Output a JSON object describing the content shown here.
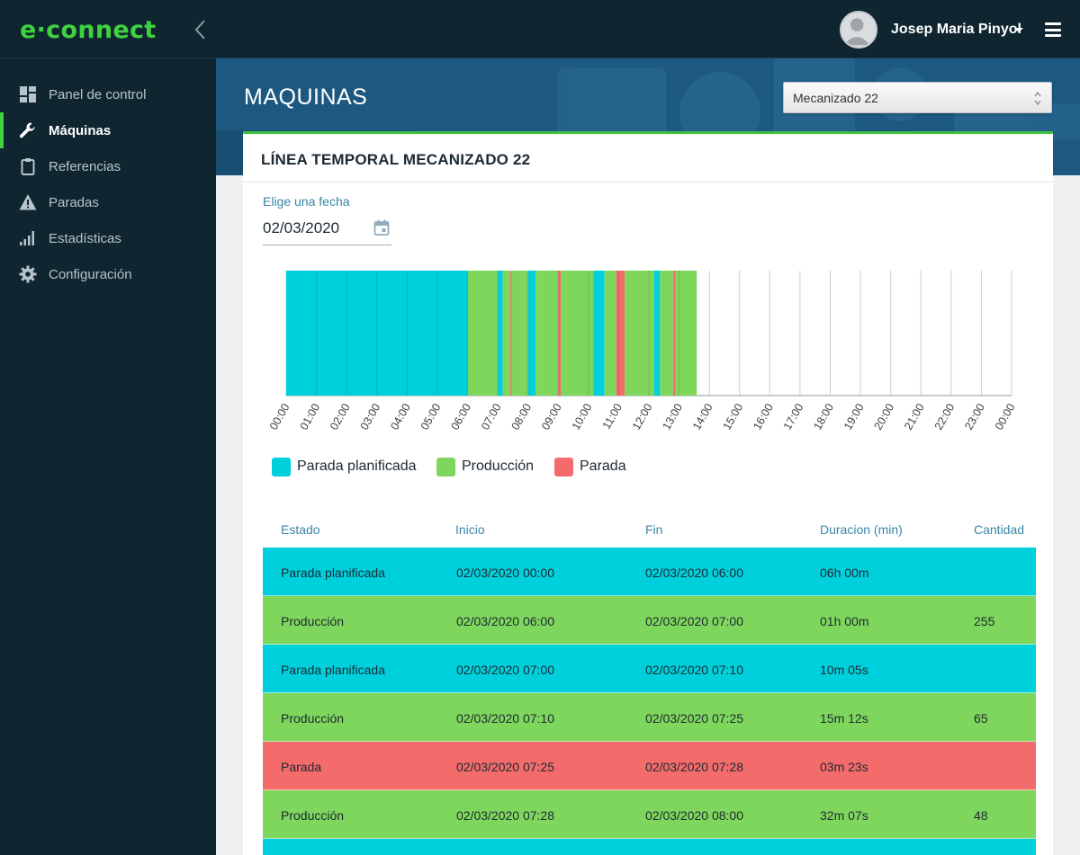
{
  "app": {
    "brand": "e·connect"
  },
  "header": {
    "user_name": "Josep Maria  Pinyol",
    "icons": [
      "chevron-left-icon",
      "user-avatar",
      "caret-down-icon",
      "hamburger-menu-icon"
    ]
  },
  "sidebar": {
    "items": [
      {
        "label": "Panel de control",
        "icon": "dashboard-icon",
        "active": false
      },
      {
        "label": "Máquinas",
        "icon": "wrench-icon",
        "active": true
      },
      {
        "label": "Referencias",
        "icon": "clipboard-icon",
        "active": false
      },
      {
        "label": "Paradas",
        "icon": "warning-icon",
        "active": false
      },
      {
        "label": "Estadísticas",
        "icon": "signal-bars-icon",
        "active": false
      },
      {
        "label": "Configuración",
        "icon": "gear-icon",
        "active": false
      }
    ]
  },
  "page": {
    "title": "MAQUINAS",
    "machine_select": {
      "value": "Mecanizado 22"
    }
  },
  "card": {
    "title": "LÍNEA TEMPORAL MECANIZADO 22",
    "date_label": "Elige una fecha",
    "date_value": "02/03/2020"
  },
  "colors": {
    "parada_planificada": "#00d0dc",
    "produccion": "#7fd65c",
    "parada": "#f36b6b",
    "accent": "#3fd13f",
    "sidebar_bg": "#0f2530"
  },
  "chart_data": {
    "type": "timeline",
    "x_unit": "hour of day",
    "xlim": [
      "00:00",
      "24:00"
    ],
    "ticks": [
      "00:00",
      "01:00",
      "02:00",
      "03:00",
      "04:00",
      "05:00",
      "06:00",
      "07:00",
      "08:00",
      "09:00",
      "10:00",
      "11:00",
      "12:00",
      "13:00",
      "14:00",
      "15:00",
      "16:00",
      "17:00",
      "18:00",
      "19:00",
      "20:00",
      "21:00",
      "22:00",
      "23:00",
      "00:00"
    ],
    "grid": true,
    "legend_position": "bottom-left",
    "legend": [
      {
        "name": "Parada planificada",
        "key": "parada_planificada"
      },
      {
        "name": "Producción",
        "key": "produccion"
      },
      {
        "name": "Parada",
        "key": "parada"
      }
    ],
    "segments": [
      {
        "state": "parada_planificada",
        "start": "00:00",
        "end": "06:00"
      },
      {
        "state": "produccion",
        "start": "06:00",
        "end": "07:00"
      },
      {
        "state": "parada_planificada",
        "start": "07:00",
        "end": "07:10"
      },
      {
        "state": "produccion",
        "start": "07:10",
        "end": "07:25"
      },
      {
        "state": "parada",
        "start": "07:25",
        "end": "07:28"
      },
      {
        "state": "produccion",
        "start": "07:28",
        "end": "08:00"
      },
      {
        "state": "parada_planificada",
        "start": "08:00",
        "end": "08:15"
      },
      {
        "state": "produccion",
        "start": "08:15",
        "end": "09:00"
      },
      {
        "state": "parada",
        "start": "09:00",
        "end": "09:05"
      },
      {
        "state": "produccion",
        "start": "09:05",
        "end": "10:10"
      },
      {
        "state": "parada_planificada",
        "start": "10:10",
        "end": "10:32"
      },
      {
        "state": "produccion",
        "start": "10:32",
        "end": "10:55"
      },
      {
        "state": "parada",
        "start": "10:55",
        "end": "11:12"
      },
      {
        "state": "produccion",
        "start": "11:12",
        "end": "12:10"
      },
      {
        "state": "parada_planificada",
        "start": "12:10",
        "end": "12:22"
      },
      {
        "state": "produccion",
        "start": "12:22",
        "end": "12:48"
      },
      {
        "state": "parada",
        "start": "12:48",
        "end": "12:53"
      },
      {
        "state": "produccion",
        "start": "12:53",
        "end": "13:35"
      }
    ]
  },
  "table": {
    "headers": [
      "Estado",
      "Inicio",
      "Fin",
      "Duracion (min)",
      "Cantidad"
    ],
    "rows": [
      {
        "state": "parada_planificada",
        "cells": [
          "Parada planificada",
          "02/03/2020  00:00",
          "02/03/2020  06:00",
          "06h 00m",
          ""
        ]
      },
      {
        "state": "produccion",
        "cells": [
          "Producción",
          "02/03/2020  06:00",
          "02/03/2020  07:00",
          "01h 00m",
          "255"
        ]
      },
      {
        "state": "parada_planificada",
        "cells": [
          "Parada planificada",
          "02/03/2020  07:00",
          "02/03/2020  07:10",
          "10m 05s",
          ""
        ]
      },
      {
        "state": "produccion",
        "cells": [
          "Producción",
          "02/03/2020  07:10",
          "02/03/2020  07:25",
          "15m 12s",
          "65"
        ]
      },
      {
        "state": "parada",
        "cells": [
          "Parada",
          "02/03/2020  07:25",
          "02/03/2020  07:28",
          "03m 23s",
          ""
        ]
      },
      {
        "state": "produccion",
        "cells": [
          "Producción",
          "02/03/2020  07:28",
          "02/03/2020  08:00",
          "32m 07s",
          "48"
        ]
      },
      {
        "state": "parada_planificada",
        "cells": [
          "",
          "",
          "",
          "",
          ""
        ]
      }
    ]
  }
}
